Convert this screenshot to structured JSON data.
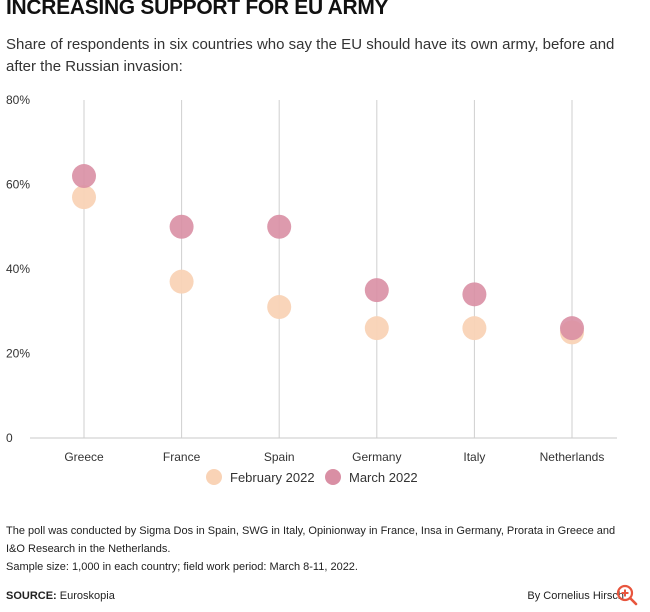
{
  "header": {
    "title": "INCREASING SUPPORT FOR EU ARMY",
    "subtitle": "Share of respondents in six countries who say the EU should have its own army, before and after the Russian invasion:"
  },
  "chart_data": {
    "type": "scatter",
    "title": "INCREASING SUPPORT FOR EU ARMY",
    "categories": [
      "Greece",
      "France",
      "Spain",
      "Germany",
      "Italy",
      "Netherlands"
    ],
    "series": [
      {
        "name": "February 2022",
        "color": "#f9d3b6",
        "values": [
          57,
          37,
          31,
          26,
          26,
          25
        ]
      },
      {
        "name": "March 2022",
        "color": "#d98fa4",
        "values": [
          62,
          50,
          50,
          35,
          34,
          26
        ]
      }
    ],
    "y_ticks": [
      0,
      20,
      40,
      60,
      80
    ],
    "y_tick_labels": [
      "0",
      "20%",
      "40%",
      "60%",
      "80%"
    ],
    "ylim": [
      0,
      80
    ],
    "xlabel": "",
    "ylabel": "",
    "legend": "bottom-center",
    "grid": "vertical"
  },
  "footer": {
    "note1": "The poll was conducted by Sigma Dos in Spain, SWG in Italy, Opinionway in France, Insa in Germany, Prorata in Greece and I&O Research in the Netherlands.",
    "note2": "Sample size: 1,000 in each country; field work period: March 8-11, 2022.",
    "source_label": "SOURCE:",
    "source_value": "Euroskopia",
    "byline": "By Cornelius Hirsch"
  },
  "icons": {
    "zoom": "zoom-in-icon"
  }
}
